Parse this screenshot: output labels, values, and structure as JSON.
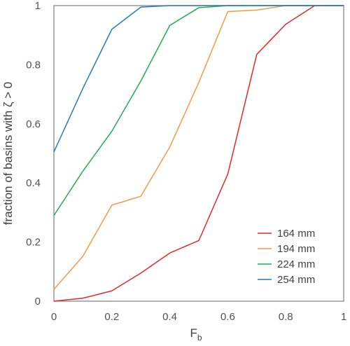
{
  "chart_data": {
    "type": "line",
    "xlabel_main": "F",
    "xlabel_sub": "b",
    "ylabel": "fraction of basins with ζ > 0",
    "xlim": [
      0,
      1
    ],
    "ylim": [
      0,
      1
    ],
    "x_ticks": [
      "0",
      "0.2",
      "0.4",
      "0.6",
      "0.8",
      "1"
    ],
    "y_ticks": [
      "0",
      "0.2",
      "0.4",
      "0.6",
      "0.8",
      "1"
    ],
    "grid": false,
    "legend_position": "bottom-right",
    "x": [
      0,
      0.1,
      0.2,
      0.3,
      0.4,
      0.5,
      0.6,
      0.7,
      0.8,
      0.9,
      1.0
    ],
    "series": [
      {
        "name": "164 mm",
        "color": "#e8262a",
        "values": [
          0.0,
          0.01,
          0.035,
          0.095,
          0.163,
          0.205,
          0.43,
          0.835,
          0.937,
          1.0,
          1.0
        ]
      },
      {
        "name": "194 mm",
        "color": "#f39a4a",
        "values": [
          0.04,
          0.152,
          0.325,
          0.355,
          0.522,
          0.74,
          0.98,
          0.985,
          1.0,
          1.0,
          1.0
        ]
      },
      {
        "name": "224 mm",
        "color": "#1fae4b",
        "values": [
          0.29,
          0.44,
          0.575,
          0.745,
          0.933,
          0.993,
          1.0,
          1.0,
          1.0,
          1.0,
          1.0
        ]
      },
      {
        "name": "254 mm",
        "color": "#2a7ab8",
        "values": [
          0.505,
          0.72,
          0.92,
          0.995,
          1.0,
          1.0,
          1.0,
          1.0,
          1.0,
          1.0,
          1.0
        ]
      }
    ]
  }
}
